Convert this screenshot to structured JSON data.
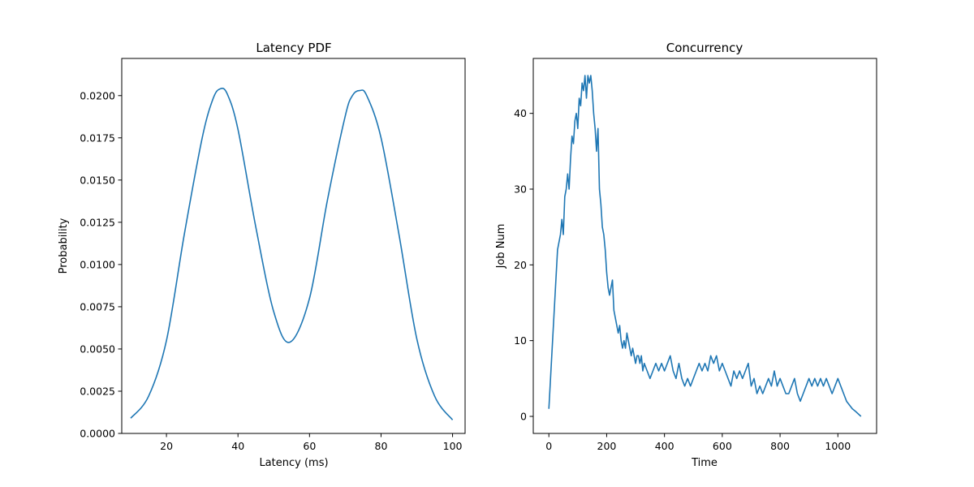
{
  "chart_data": [
    {
      "type": "line",
      "title": "Latency PDF",
      "xlabel": "Latency (ms)",
      "ylabel": "Probability",
      "xlim": [
        7.5,
        103.5
      ],
      "ylim": [
        0,
        0.0222
      ],
      "xticks": [
        20,
        40,
        60,
        80,
        100
      ],
      "yticks": [
        0,
        0.0025,
        0.005,
        0.0075,
        0.01,
        0.0125,
        0.015,
        0.0175,
        0.02
      ],
      "ytick_labels": [
        "0.0000",
        "0.0025",
        "0.0050",
        "0.0075",
        "0.0100",
        "0.0125",
        "0.0150",
        "0.0175",
        "0.0200"
      ],
      "color": "#1f77b4",
      "grid": false,
      "series": [
        {
          "x": [
            10,
            15,
            20,
            25,
            30,
            33,
            35,
            37,
            40,
            45,
            50,
            54.5,
            60,
            65,
            70,
            72,
            74,
            76,
            80,
            85,
            90,
            95,
            100
          ],
          "y": [
            0.0009,
            0.0022,
            0.0055,
            0.0118,
            0.0175,
            0.0198,
            0.0204,
            0.0201,
            0.018,
            0.0122,
            0.0072,
            0.0054,
            0.008,
            0.0138,
            0.0188,
            0.02,
            0.0203,
            0.02,
            0.0175,
            0.0118,
            0.0056,
            0.0022,
            0.0008
          ]
        }
      ]
    },
    {
      "type": "line",
      "title": "Concurrency",
      "xlabel": "Time",
      "ylabel": "Job Num",
      "xlim": [
        -54,
        1134
      ],
      "ylim": [
        -2.25,
        47.25
      ],
      "xticks": [
        0,
        200,
        400,
        600,
        800,
        1000
      ],
      "yticks": [
        0,
        10,
        20,
        30,
        40
      ],
      "color": "#1f77b4",
      "grid": false,
      "series": [
        {
          "x": [
            0,
            10,
            20,
            30,
            40,
            45,
            50,
            55,
            60,
            65,
            70,
            75,
            80,
            85,
            90,
            95,
            100,
            105,
            110,
            115,
            120,
            125,
            130,
            135,
            140,
            145,
            150,
            155,
            160,
            165,
            170,
            175,
            180,
            185,
            190,
            195,
            200,
            205,
            210,
            215,
            220,
            225,
            230,
            235,
            240,
            245,
            250,
            255,
            260,
            265,
            270,
            275,
            280,
            285,
            290,
            295,
            300,
            305,
            310,
            315,
            320,
            325,
            330,
            340,
            350,
            360,
            370,
            380,
            390,
            400,
            410,
            420,
            430,
            440,
            450,
            460,
            470,
            480,
            490,
            500,
            510,
            520,
            530,
            540,
            550,
            560,
            570,
            580,
            590,
            600,
            610,
            620,
            630,
            640,
            650,
            660,
            670,
            680,
            690,
            700,
            710,
            720,
            730,
            740,
            750,
            760,
            770,
            780,
            790,
            800,
            810,
            820,
            830,
            840,
            850,
            860,
            870,
            880,
            890,
            900,
            910,
            920,
            930,
            940,
            950,
            960,
            970,
            980,
            990,
            1000,
            1010,
            1020,
            1030,
            1040,
            1050,
            1060,
            1080
          ],
          "y": [
            1,
            8,
            15,
            22,
            24,
            26,
            24,
            29,
            30,
            32,
            30,
            34,
            37,
            36,
            39,
            40,
            38,
            42,
            41,
            44,
            43,
            45,
            42,
            45,
            44,
            45,
            43,
            40,
            38,
            35,
            38,
            30,
            28,
            25,
            24,
            22,
            19,
            17,
            16,
            17,
            18,
            14,
            13,
            12,
            11,
            12,
            10,
            9,
            10,
            9,
            11,
            10,
            9,
            8,
            9,
            8,
            7,
            8,
            8,
            7,
            8,
            6,
            7,
            6,
            5,
            6,
            7,
            6,
            7,
            6,
            7,
            8,
            6,
            5,
            7,
            5,
            4,
            5,
            4,
            5,
            6,
            7,
            6,
            7,
            6,
            8,
            7,
            8,
            6,
            7,
            6,
            5,
            4,
            6,
            5,
            6,
            5,
            6,
            7,
            4,
            5,
            3,
            4,
            3,
            4,
            5,
            4,
            6,
            4,
            5,
            4,
            3,
            3,
            4,
            5,
            3,
            2,
            3,
            4,
            5,
            4,
            5,
            4,
            5,
            4,
            5,
            4,
            3,
            4,
            5,
            4,
            3,
            2,
            1.5,
            1,
            0.7,
            0
          ]
        }
      ]
    }
  ]
}
